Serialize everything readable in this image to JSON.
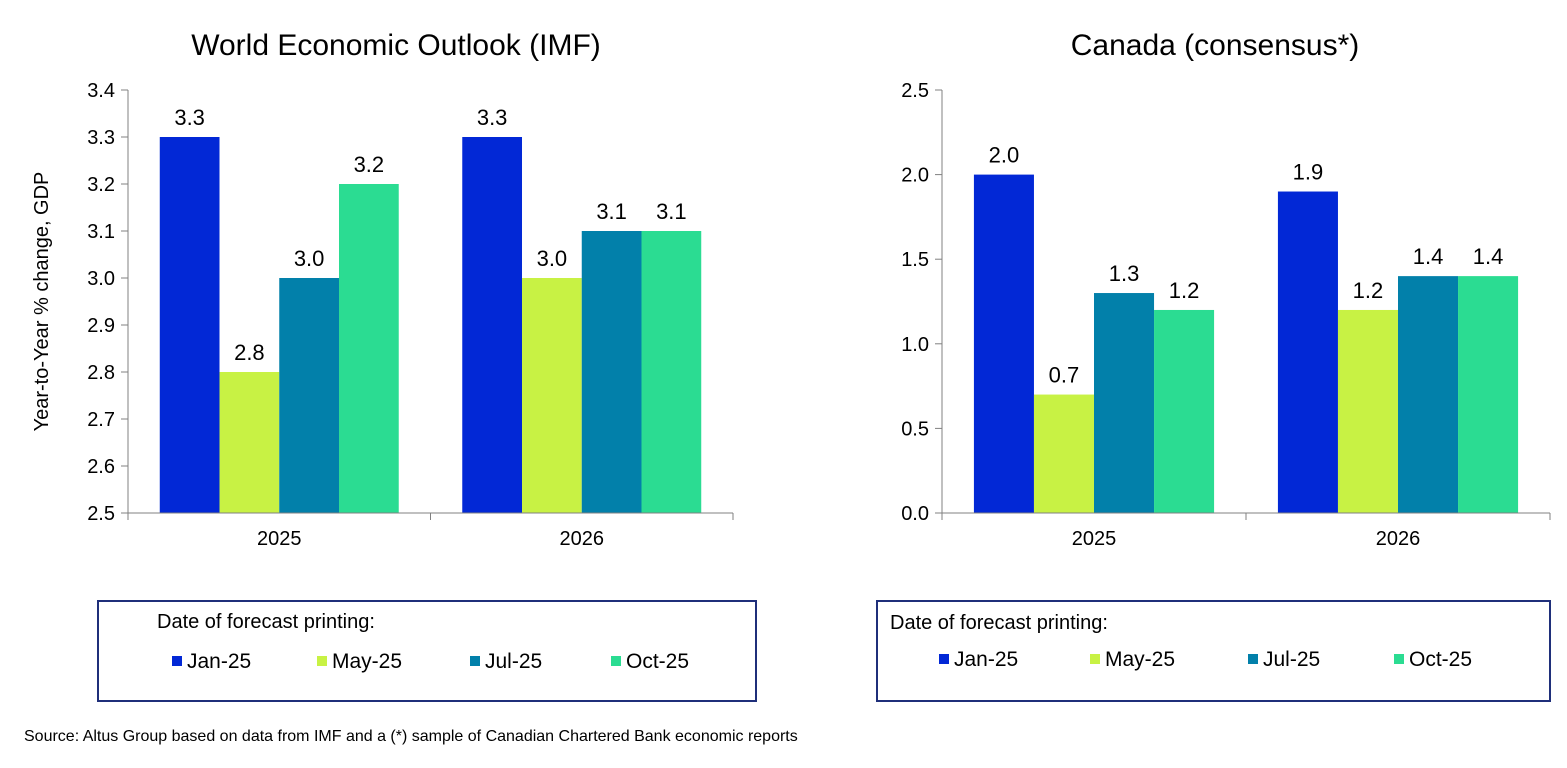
{
  "chart_data": [
    {
      "type": "bar",
      "title": "World Economic Outlook (IMF)",
      "ylabel": "Year-to-Year % change, GDP",
      "xlabel": "",
      "ylim": [
        2.5,
        3.4
      ],
      "yticks": [
        "2.5",
        "2.6",
        "2.7",
        "2.8",
        "2.9",
        "3.0",
        "3.1",
        "3.2",
        "3.3",
        "3.4"
      ],
      "categories": [
        "2025",
        "2026"
      ],
      "series": [
        {
          "name": "Jan-25",
          "color": "#0228d6",
          "values": [
            3.3,
            3.3
          ],
          "labels": [
            "3.3",
            "3.3"
          ]
        },
        {
          "name": "May-25",
          "color": "#c8f244",
          "values": [
            2.8,
            3.0
          ],
          "labels": [
            "2.8",
            "3.0"
          ]
        },
        {
          "name": "Jul-25",
          "color": "#0280aa",
          "values": [
            3.0,
            3.1
          ],
          "labels": [
            "3.0",
            "3.1"
          ]
        },
        {
          "name": "Oct-25",
          "color": "#2bdc92",
          "values": [
            3.2,
            3.1
          ],
          "labels": [
            "3.2",
            "3.1"
          ]
        }
      ],
      "legend_title": "Date of forecast printing:"
    },
    {
      "type": "bar",
      "title": "Canada (consensus*)",
      "ylabel": "",
      "xlabel": "",
      "ylim": [
        0.0,
        2.5
      ],
      "yticks": [
        "0.0",
        "0.5",
        "1.0",
        "1.5",
        "2.0",
        "2.5"
      ],
      "categories": [
        "2025",
        "2026"
      ],
      "series": [
        {
          "name": "Jan-25",
          "color": "#0228d6",
          "values": [
            2.0,
            1.9
          ],
          "labels": [
            "2.0",
            "1.9"
          ]
        },
        {
          "name": "May-25",
          "color": "#c8f244",
          "values": [
            0.7,
            1.2
          ],
          "labels": [
            "0.7",
            "1.2"
          ]
        },
        {
          "name": "Jul-25",
          "color": "#0280aa",
          "values": [
            1.3,
            1.4
          ],
          "labels": [
            "1.3",
            "1.4"
          ]
        },
        {
          "name": "Oct-25",
          "color": "#2bdc92",
          "values": [
            1.2,
            1.4
          ],
          "labels": [
            "1.2",
            "1.4"
          ]
        }
      ],
      "legend_title": "Date of forecast printing:"
    }
  ],
  "source": "Source:  Altus Group based on data from IMF and a (*) sample of Canadian Chartered Bank economic reports",
  "colors": {
    "axis": "#808080",
    "legend_border": "#1f2f7a"
  }
}
